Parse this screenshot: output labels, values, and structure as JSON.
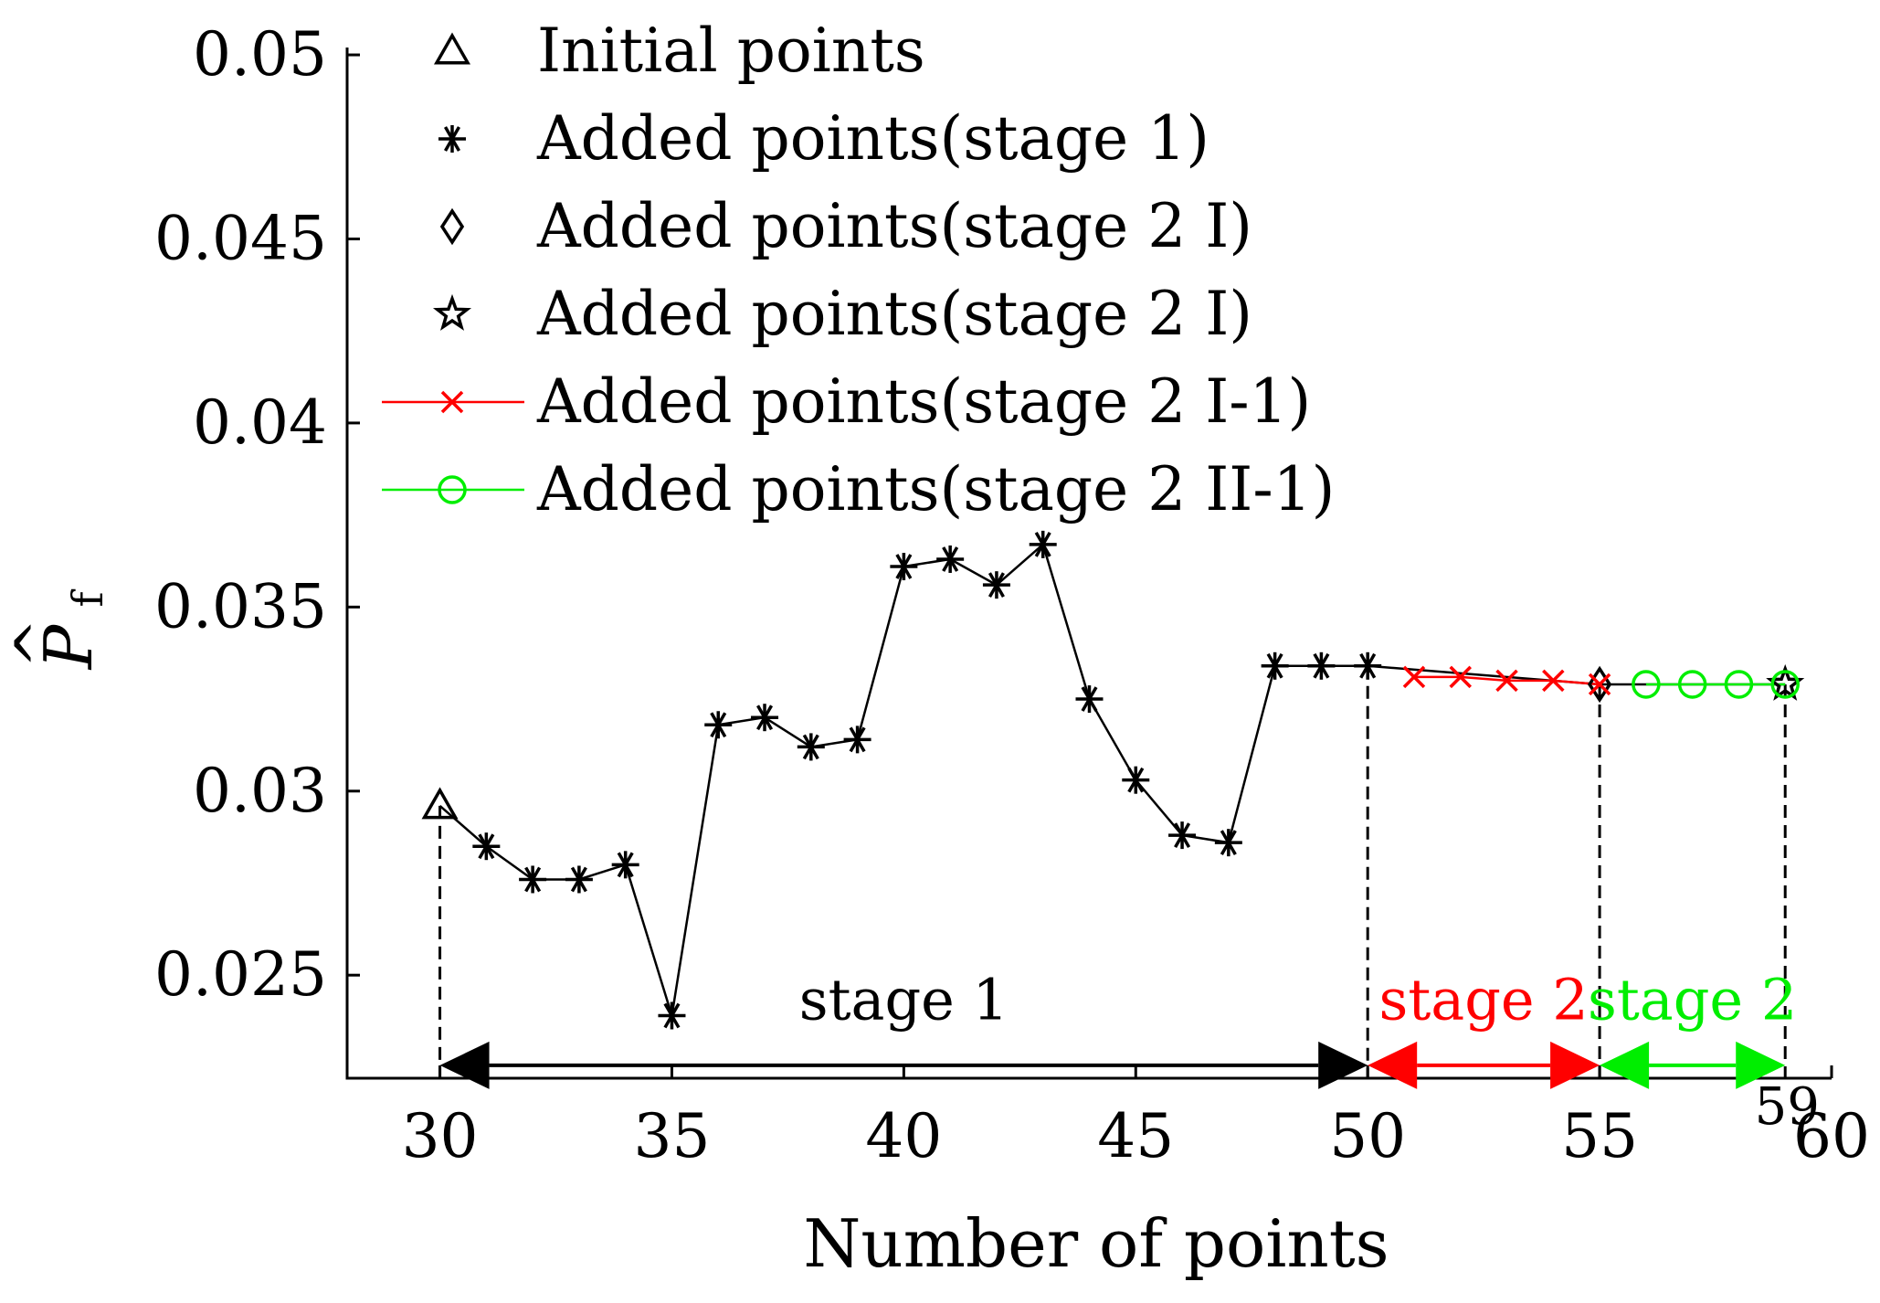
{
  "chart_data": {
    "type": "line",
    "title": "",
    "xlabel": "Number of points",
    "ylabel": "P̂f",
    "ylabel_main": "P",
    "ylabel_sub": "f",
    "ylabel_hat": "^",
    "xlim": [
      28,
      60
    ],
    "ylim": [
      0.0222,
      0.0502
    ],
    "xticks": [
      30,
      35,
      40,
      45,
      50,
      55,
      60
    ],
    "xtick_labels": [
      "30",
      "35",
      "40",
      "45",
      "50",
      "55",
      "60"
    ],
    "extra_xtick": {
      "x": 59,
      "label": "59"
    },
    "yticks": [
      0.025,
      0.03,
      0.035,
      0.04,
      0.045,
      0.05
    ],
    "ytick_labels": [
      "0.025",
      "0.03",
      "0.035",
      "0.04",
      "0.045",
      "0.05"
    ],
    "grid": false,
    "legend_position": "top",
    "series": [
      {
        "name": "Initial points",
        "marker": "triangle",
        "line": false,
        "color": "#000000",
        "x": [
          30
        ],
        "y": [
          0.0296
        ]
      },
      {
        "name": "Added points(stage 1)",
        "marker": "asterisk",
        "line": false,
        "color": "#000000",
        "x": [
          31,
          32,
          33,
          34,
          35,
          36,
          37,
          38,
          39,
          40,
          41,
          42,
          43,
          44,
          45,
          46,
          47,
          48,
          49,
          50
        ],
        "y": [
          0.0285,
          0.0276,
          0.0276,
          0.028,
          0.0239,
          0.0318,
          0.032,
          0.0312,
          0.0314,
          0.0361,
          0.0363,
          0.0356,
          0.0367,
          0.0325,
          0.0303,
          0.0288,
          0.0286,
          0.0334,
          0.0334,
          0.0334
        ]
      },
      {
        "name": "Added points(stage 2 I)",
        "marker": "diamond",
        "line": false,
        "color": "#000000",
        "x": [
          55
        ],
        "y": [
          0.0329
        ]
      },
      {
        "name": "Added points(stage 2 I)",
        "marker": "star",
        "line": false,
        "color": "#000000",
        "x": [
          59
        ],
        "y": [
          0.0329
        ]
      },
      {
        "name": "Added points(stage 2 I-1)",
        "marker": "x",
        "line": true,
        "color": "#ff0000",
        "x": [
          51,
          52,
          53,
          54,
          55
        ],
        "y": [
          0.0331,
          0.0331,
          0.033,
          0.033,
          0.0329
        ]
      },
      {
        "name": "Added points(stage 2 II-1)",
        "marker": "circle",
        "line": true,
        "color": "#00ee00",
        "x": [
          56,
          57,
          58,
          59
        ],
        "y": [
          0.0329,
          0.0329,
          0.0329,
          0.0329
        ]
      }
    ],
    "connecting_line": {
      "color": "#000000",
      "x": [
        30,
        31,
        32,
        33,
        34,
        35,
        36,
        37,
        38,
        39,
        40,
        41,
        42,
        43,
        44,
        45,
        46,
        47,
        48,
        49,
        50,
        55,
        59
      ],
      "y": [
        0.0296,
        0.0285,
        0.0276,
        0.0276,
        0.028,
        0.0239,
        0.0318,
        0.032,
        0.0312,
        0.0314,
        0.0361,
        0.0363,
        0.0356,
        0.0367,
        0.0325,
        0.0303,
        0.0288,
        0.0286,
        0.0334,
        0.0334,
        0.0334,
        0.0329,
        0.0329
      ]
    },
    "stage_dividers": [
      {
        "x": 30,
        "y_top": 0.0296
      },
      {
        "x": 50,
        "y_top": 0.0334
      },
      {
        "x": 55,
        "y_top": 0.0329
      },
      {
        "x": 59,
        "y_top": 0.0329
      }
    ],
    "stage_annotations": [
      {
        "label": "stage 1",
        "x_start": 30,
        "x_end": 50,
        "y": 0.02255,
        "label_y": 0.0238,
        "color": "#000000"
      },
      {
        "label": "stage 2",
        "x_start": 50,
        "x_end": 55,
        "y": 0.02255,
        "label_y": 0.0238,
        "color": "#ff0000"
      },
      {
        "label": "stage 2",
        "x_start": 55,
        "x_end": 59,
        "y": 0.02255,
        "label_y": 0.0238,
        "color": "#00ee00"
      }
    ]
  }
}
